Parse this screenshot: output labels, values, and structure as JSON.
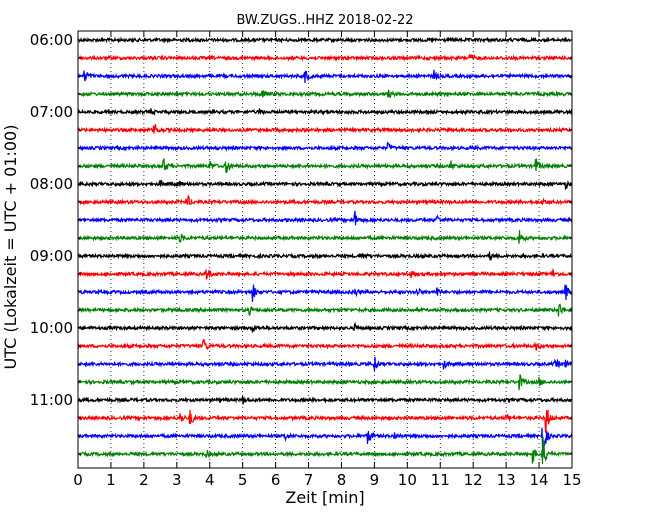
{
  "chart_data": {
    "type": "line",
    "title": "BW.ZUGS..HHZ 2018-02-22",
    "xlabel": "Zeit  [min]",
    "ylabel": "UTC (Lokalzeit = UTC + 01:00)",
    "xlim": [
      0,
      15
    ],
    "x_ticks": [
      0,
      1,
      2,
      3,
      4,
      5,
      6,
      7,
      8,
      9,
      10,
      11,
      12,
      13,
      14,
      15
    ],
    "y_tick_labels": [
      "06:00",
      "07:00",
      "08:00",
      "09:00",
      "10:00",
      "11:00"
    ],
    "grid": "vertical dotted",
    "trace_colors": [
      "#000000",
      "#ff0000",
      "#0000ff",
      "#008000"
    ],
    "traces": [
      {
        "start": "06:00",
        "events": []
      },
      {
        "start": "06:15",
        "events": [
          [
            11.9,
            0.5
          ]
        ]
      },
      {
        "start": "06:30",
        "events": [
          [
            0.2,
            1.0
          ],
          [
            6.9,
            1.0
          ],
          [
            10.8,
            0.6
          ]
        ]
      },
      {
        "start": "06:45",
        "events": [
          [
            5.6,
            0.5
          ],
          [
            9.4,
            0.5
          ]
        ]
      },
      {
        "start": "07:00",
        "events": [
          [
            2.2,
            0.3
          ],
          [
            5.5,
            0.3
          ]
        ]
      },
      {
        "start": "07:15",
        "events": [
          [
            2.3,
            1.0
          ]
        ]
      },
      {
        "start": "07:30",
        "events": [
          [
            9.4,
            0.5
          ]
        ]
      },
      {
        "start": "07:45",
        "events": [
          [
            2.6,
            1.0
          ],
          [
            4.0,
            0.6
          ],
          [
            4.5,
            1.0
          ],
          [
            11.3,
            0.6
          ],
          [
            13.9,
            0.9
          ]
        ]
      },
      {
        "start": "08:00",
        "events": [
          [
            2.5,
            0.4
          ],
          [
            3.0,
            0.4
          ],
          [
            14.8,
            0.4
          ]
        ]
      },
      {
        "start": "08:15",
        "events": [
          [
            3.3,
            1.0
          ],
          [
            14.1,
            0.4
          ]
        ]
      },
      {
        "start": "08:30",
        "events": [
          [
            8.4,
            1.0
          ],
          [
            10.9,
            0.5
          ]
        ]
      },
      {
        "start": "08:45",
        "events": [
          [
            3.1,
            0.5
          ],
          [
            13.4,
            1.0
          ]
        ]
      },
      {
        "start": "09:00",
        "events": [
          [
            8.6,
            0.4
          ],
          [
            12.5,
            0.4
          ]
        ]
      },
      {
        "start": "09:15",
        "events": [
          [
            3.9,
            1.0
          ],
          [
            10.1,
            0.5
          ],
          [
            14.4,
            0.5
          ]
        ]
      },
      {
        "start": "09:30",
        "events": [
          [
            5.3,
            1.0
          ],
          [
            8.4,
            0.5
          ],
          [
            10.3,
            0.5
          ],
          [
            10.9,
            0.5
          ],
          [
            14.8,
            1.0
          ]
        ]
      },
      {
        "start": "09:45",
        "events": [
          [
            5.2,
            0.4
          ],
          [
            14.6,
            1.0
          ]
        ]
      },
      {
        "start": "10:00",
        "events": [
          [
            5.3,
            0.4
          ],
          [
            8.4,
            0.4
          ]
        ]
      },
      {
        "start": "10:15",
        "events": [
          [
            3.8,
            1.0
          ],
          [
            13.9,
            0.5
          ]
        ]
      },
      {
        "start": "10:30",
        "events": [
          [
            9.0,
            1.0
          ],
          [
            11.1,
            0.5
          ],
          [
            14.5,
            0.5
          ],
          [
            14.8,
            0.5
          ]
        ]
      },
      {
        "start": "10:45",
        "events": [
          [
            13.4,
            1.0
          ],
          [
            14.0,
            0.4
          ]
        ]
      },
      {
        "start": "11:00",
        "events": [
          [
            5.0,
            0.4
          ]
        ]
      },
      {
        "start": "11:15",
        "events": [
          [
            3.1,
            0.6
          ],
          [
            3.4,
            1.0
          ],
          [
            13.0,
            0.5
          ],
          [
            14.2,
            2.0
          ]
        ]
      },
      {
        "start": "11:30",
        "events": [
          [
            6.3,
            0.4
          ],
          [
            8.8,
            1.0
          ],
          [
            9.6,
            0.4
          ],
          [
            14.1,
            3.0
          ]
        ]
      },
      {
        "start": "11:45",
        "events": [
          [
            3.9,
            0.4
          ],
          [
            13.8,
            1.0
          ],
          [
            14.1,
            2.5
          ]
        ]
      }
    ]
  }
}
